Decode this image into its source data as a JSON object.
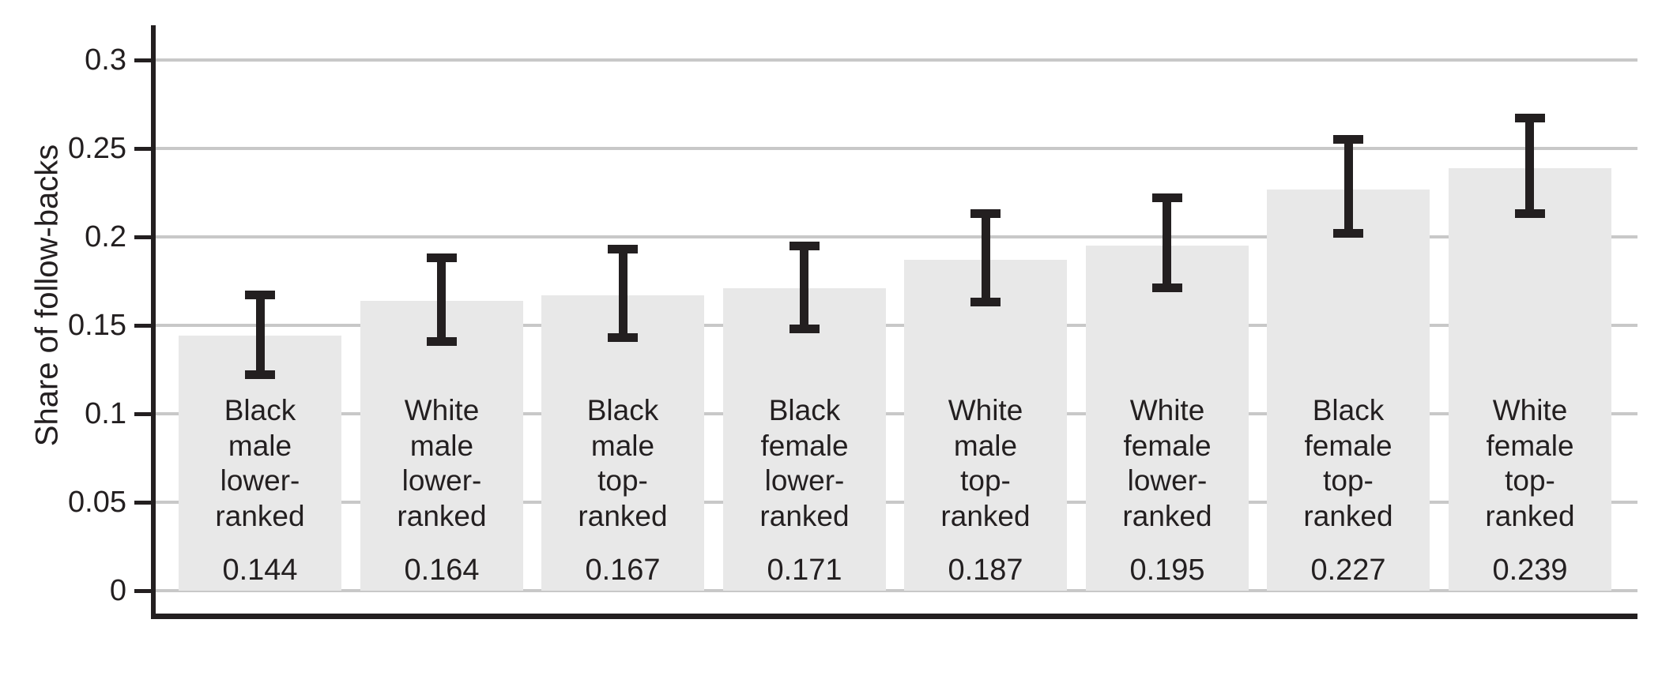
{
  "chart_data": {
    "type": "bar",
    "title": "",
    "xlabel": "",
    "ylabel": "Share of follow-backs",
    "ylim": [
      0,
      0.32
    ],
    "grid": true,
    "legend_position": "none",
    "error_bars": "95% CI (estimated from gridlines)",
    "yticks": [
      {
        "value": 0,
        "label": "0"
      },
      {
        "value": 0.05,
        "label": "0.05"
      },
      {
        "value": 0.1,
        "label": "0.1"
      },
      {
        "value": 0.15,
        "label": "0.15"
      },
      {
        "value": 0.2,
        "label": "0.2"
      },
      {
        "value": 0.25,
        "label": "0.25"
      },
      {
        "value": 0.3,
        "label": "0.3"
      }
    ],
    "bars": [
      {
        "category": "Black male lower-ranked",
        "label_lines": [
          "Black",
          "male",
          "lower-",
          "ranked"
        ],
        "value": 0.144,
        "value_label": "0.144",
        "ci_low": 0.122,
        "ci_high": 0.167
      },
      {
        "category": "White male lower-ranked",
        "label_lines": [
          "White",
          "male",
          "lower-",
          "ranked"
        ],
        "value": 0.164,
        "value_label": "0.164",
        "ci_low": 0.141,
        "ci_high": 0.188
      },
      {
        "category": "Black male top-ranked",
        "label_lines": [
          "Black",
          "male",
          "top-",
          "ranked"
        ],
        "value": 0.167,
        "value_label": "0.167",
        "ci_low": 0.143,
        "ci_high": 0.193
      },
      {
        "category": "Black female lower-ranked",
        "label_lines": [
          "Black",
          "female",
          "lower-",
          "ranked"
        ],
        "value": 0.171,
        "value_label": "0.171",
        "ci_low": 0.148,
        "ci_high": 0.195
      },
      {
        "category": "White male top-ranked",
        "label_lines": [
          "White",
          "male",
          "top-",
          "ranked"
        ],
        "value": 0.187,
        "value_label": "0.187",
        "ci_low": 0.163,
        "ci_high": 0.213
      },
      {
        "category": "White female lower-ranked",
        "label_lines": [
          "White",
          "female",
          "lower-",
          "ranked"
        ],
        "value": 0.195,
        "value_label": "0.195",
        "ci_low": 0.171,
        "ci_high": 0.222
      },
      {
        "category": "Black female top-ranked",
        "label_lines": [
          "Black",
          "female",
          "top-",
          "ranked"
        ],
        "value": 0.227,
        "value_label": "0.227",
        "ci_low": 0.202,
        "ci_high": 0.255
      },
      {
        "category": "White female top-ranked",
        "label_lines": [
          "White",
          "female",
          "top-",
          "ranked"
        ],
        "value": 0.239,
        "value_label": "0.239",
        "ci_low": 0.213,
        "ci_high": 0.267
      }
    ],
    "colors": {
      "bar_fill": "#e8e8e8",
      "gridline": "#c8c8c8",
      "axis": "#231f20",
      "error_bar": "#231f20",
      "text": "#231f20",
      "background": "#ffffff"
    }
  }
}
